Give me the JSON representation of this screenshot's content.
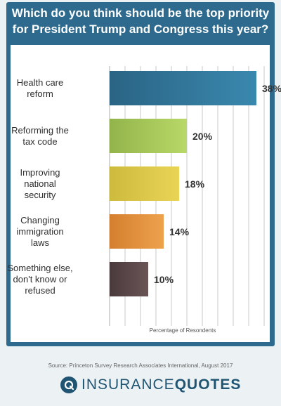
{
  "title": {
    "line1": "Which do you think should be the top priority",
    "line2": "for President Trump and Congress this year?"
  },
  "chart_data": {
    "type": "bar",
    "orientation": "horizontal",
    "categories": [
      [
        "Health care",
        "reform"
      ],
      [
        "Reforming the",
        "tax code"
      ],
      [
        "Improving",
        "national",
        "security"
      ],
      [
        "Changing",
        "immigration",
        "laws"
      ],
      [
        "Something else,",
        "don't know or",
        "refused"
      ]
    ],
    "values": [
      38,
      20,
      18,
      14,
      10
    ],
    "value_labels": [
      "38%",
      "20%",
      "18%",
      "14%",
      "10%"
    ],
    "xlim": [
      0,
      40
    ],
    "xlabel": "Percentage of Resondents",
    "grid": true,
    "colors": [
      [
        "#2a6484",
        "#3a88ae"
      ],
      [
        "#93b44a",
        "#b8d868"
      ],
      [
        "#cdbb3e",
        "#e9d456"
      ],
      [
        "#d47f2f",
        "#eea24c"
      ],
      [
        "#4a3a3c",
        "#6a5456"
      ]
    ],
    "grid_color": "#c8c8c8"
  },
  "source": "Source: Princeton Survey Research Associates International, August 2017",
  "brand": {
    "insurance": "INSURANCE",
    "quotes": "QUOTES"
  }
}
